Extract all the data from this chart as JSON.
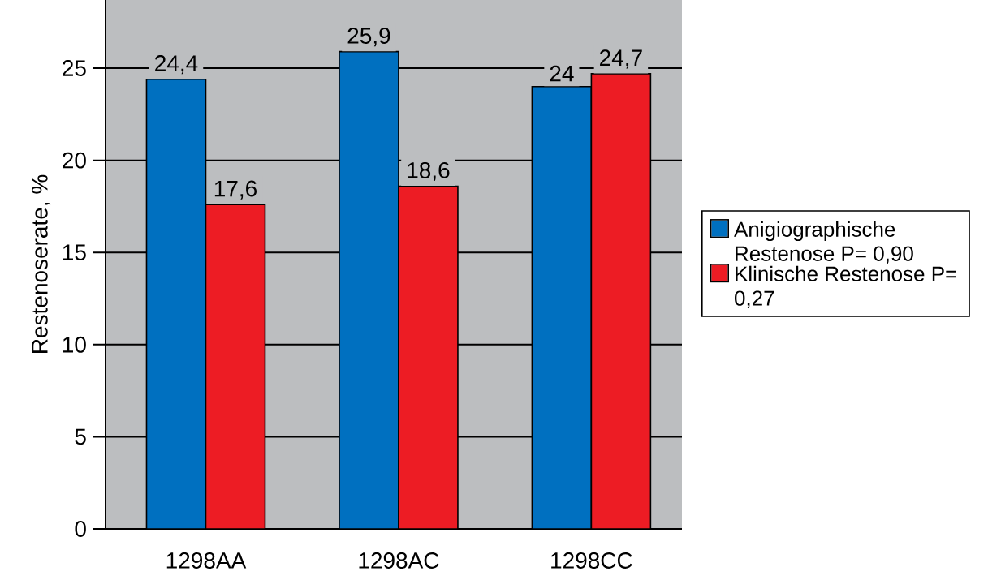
{
  "chart_data": {
    "type": "bar",
    "ylabel": "Restenoserate, %",
    "categories": [
      "1298AA",
      "1298AC",
      "1298CC"
    ],
    "series": [
      {
        "name": "Anigiographische Restenose P= 0,90",
        "color": "#0070c0",
        "values": [
          24.4,
          25.9,
          24
        ],
        "value_labels": [
          "24,4",
          "25,9",
          "24"
        ]
      },
      {
        "name": "Klinische Restenose P= 0,27",
        "color": "#ed1c24",
        "values": [
          17.6,
          18.6,
          24.7
        ],
        "value_labels": [
          "17,6",
          "18,6",
          "24,7"
        ]
      }
    ],
    "ylim": [
      0,
      28.7
    ],
    "yticks": [
      0,
      5,
      10,
      15,
      20,
      25
    ],
    "grid": "y",
    "legend": "right"
  }
}
